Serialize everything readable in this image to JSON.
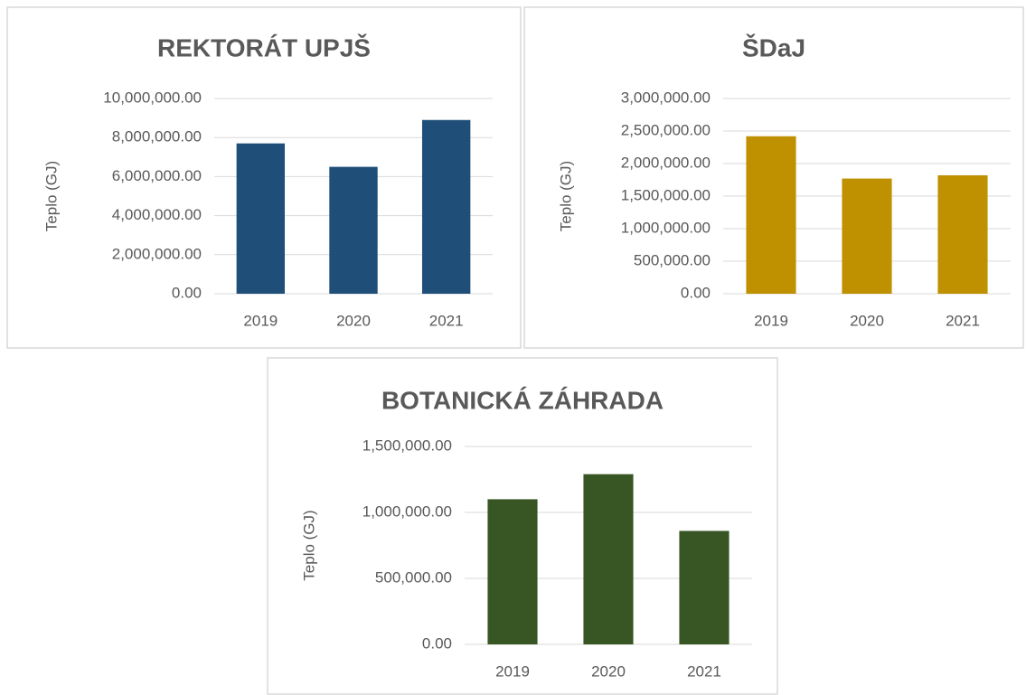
{
  "chart_data": [
    {
      "type": "bar",
      "title": "REKTORÁT UPJŠ",
      "y_label": "Teplo (GJ)",
      "categories": [
        "2019",
        "2020",
        "2021"
      ],
      "values": [
        7700000,
        6500000,
        8900000
      ],
      "color": "#1f4e79",
      "ylim": [
        0,
        10000000
      ],
      "yticks": [
        {
          "value": 0,
          "label": "0.00"
        },
        {
          "value": 2000000,
          "label": "2,000,000.00"
        },
        {
          "value": 4000000,
          "label": "4,000,000.00"
        },
        {
          "value": 6000000,
          "label": "6,000,000.00"
        },
        {
          "value": 8000000,
          "label": "8,000,000.00"
        },
        {
          "value": 10000000,
          "label": "10,000,000.00"
        }
      ],
      "grid": true
    },
    {
      "type": "bar",
      "title": "ŠDaJ",
      "y_label": "Teplo (GJ)",
      "categories": [
        "2019",
        "2020",
        "2021"
      ],
      "values": [
        2420000,
        1770000,
        1820000
      ],
      "color": "#bf9000",
      "ylim": [
        0,
        3000000
      ],
      "yticks": [
        {
          "value": 0,
          "label": "0.00"
        },
        {
          "value": 500000,
          "label": "500,000.00"
        },
        {
          "value": 1000000,
          "label": "1,000,000.00"
        },
        {
          "value": 1500000,
          "label": "1,500,000.00"
        },
        {
          "value": 2000000,
          "label": "2,000,000.00"
        },
        {
          "value": 2500000,
          "label": "2,500,000.00"
        },
        {
          "value": 3000000,
          "label": "3,000,000.00"
        }
      ],
      "grid": true
    },
    {
      "type": "bar",
      "title": "BOTANICKÁ ZÁHRADA",
      "y_label": "Teplo (GJ)",
      "categories": [
        "2019",
        "2020",
        "2021"
      ],
      "values": [
        1100000,
        1290000,
        860000
      ],
      "color": "#375623",
      "ylim": [
        0,
        1500000
      ],
      "yticks": [
        {
          "value": 0,
          "label": "0.00"
        },
        {
          "value": 500000,
          "label": "500,000.00"
        },
        {
          "value": 1000000,
          "label": "1,000,000.00"
        },
        {
          "value": 1500000,
          "label": "1,500,000.00"
        }
      ],
      "grid": true
    }
  ]
}
